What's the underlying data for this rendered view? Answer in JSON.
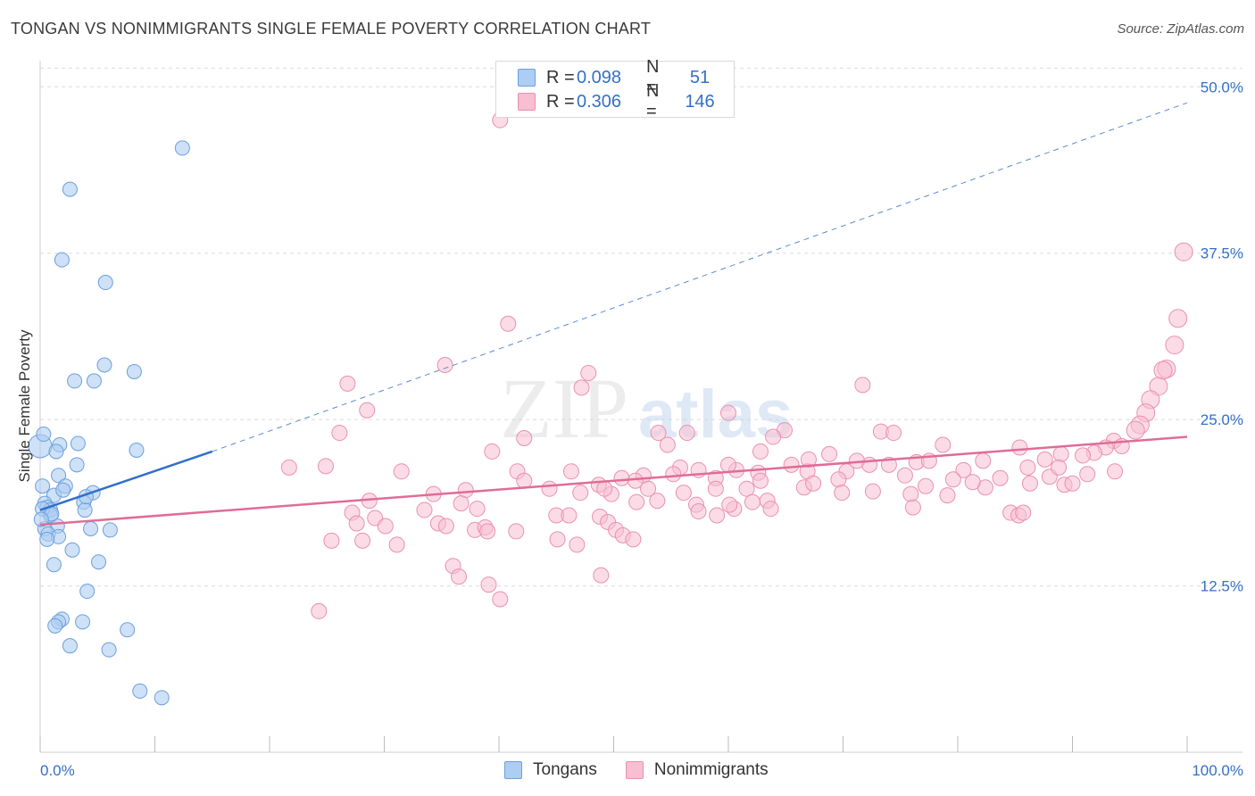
{
  "header": {
    "title": "TONGAN VS NONIMMIGRANTS SINGLE FEMALE POVERTY CORRELATION CHART",
    "source": "Source: ZipAtlas.com"
  },
  "watermark": {
    "main": "ZIP",
    "sub": "atlas"
  },
  "legend": {
    "rows": [
      {
        "r_label": "R =",
        "r_value": "0.098",
        "n_label": "N =",
        "n_value": "51"
      },
      {
        "r_label": "R =",
        "r_value": "0.306",
        "n_label": "N =",
        "n_value": "146"
      }
    ]
  },
  "bottom_legend": {
    "tongans": "Tongans",
    "nonimmigrants": "Nonimmigrants"
  },
  "colors": {
    "blue_fill": "#aecdf2",
    "blue_stroke": "#6b9fdc",
    "blue_line": "#2f6fce",
    "pink_fill": "#f7bfd1",
    "pink_stroke": "#ea90ae",
    "pink_line": "#e06c97",
    "accent_text": "#3370c8",
    "grid": "#dcdcdc"
  },
  "chart_data": {
    "type": "scatter",
    "title": "TONGAN VS NONIMMIGRANTS SINGLE FEMALE POVERTY CORRELATION CHART",
    "xlabel": "",
    "ylabel": "Single Female Poverty",
    "xlim": [
      0,
      100
    ],
    "ylim": [
      0,
      52.5
    ],
    "x_tick_labels": [
      "0.0%",
      "100.0%"
    ],
    "y_ticks": [
      12.5,
      25.0,
      37.5,
      50.0
    ],
    "y_tick_labels": [
      "12.5%",
      "25.0%",
      "37.5%",
      "50.0%"
    ],
    "legend_position": "top-center",
    "series": [
      {
        "name": "Tongans",
        "r": 0.098,
        "n": 51,
        "trend": {
          "x0": 0,
          "y0": 18.2,
          "x1": 15,
          "y1": 22.6,
          "dashed_to_x": 100,
          "dashed_to_y": 48.8
        },
        "points": [
          [
            12.4,
            45.4
          ],
          [
            2.6,
            42.3
          ],
          [
            1.9,
            37.0
          ],
          [
            5.7,
            35.3
          ],
          [
            8.2,
            28.6
          ],
          [
            5.6,
            29.1
          ],
          [
            3.0,
            27.9
          ],
          [
            4.7,
            27.9
          ],
          [
            0.0,
            23.0
          ],
          [
            0.3,
            23.9
          ],
          [
            3.3,
            23.2
          ],
          [
            1.7,
            23.1
          ],
          [
            1.4,
            22.6
          ],
          [
            8.4,
            22.7
          ],
          [
            3.2,
            21.6
          ],
          [
            1.6,
            20.8
          ],
          [
            0.2,
            20.0
          ],
          [
            2.2,
            20.0
          ],
          [
            4.6,
            19.5
          ],
          [
            1.2,
            19.3
          ],
          [
            0.4,
            18.7
          ],
          [
            0.6,
            18.4
          ],
          [
            0.9,
            18.2
          ],
          [
            3.8,
            18.8
          ],
          [
            3.9,
            18.2
          ],
          [
            0.9,
            17.8
          ],
          [
            1.5,
            17.0
          ],
          [
            0.4,
            16.8
          ],
          [
            4.4,
            16.8
          ],
          [
            6.1,
            16.7
          ],
          [
            0.7,
            16.4
          ],
          [
            1.6,
            16.2
          ],
          [
            0.6,
            16.0
          ],
          [
            2.8,
            15.2
          ],
          [
            5.1,
            14.3
          ],
          [
            1.2,
            14.1
          ],
          [
            4.1,
            12.1
          ],
          [
            1.9,
            10.0
          ],
          [
            1.6,
            9.8
          ],
          [
            3.7,
            9.8
          ],
          [
            1.3,
            9.5
          ],
          [
            7.6,
            9.2
          ],
          [
            2.6,
            8.0
          ],
          [
            6.0,
            7.7
          ],
          [
            8.7,
            4.6
          ],
          [
            10.6,
            4.1
          ],
          [
            0.2,
            18.3
          ],
          [
            1.0,
            17.9
          ],
          [
            2.0,
            19.7
          ],
          [
            4.0,
            19.2
          ],
          [
            0.1,
            17.5
          ]
        ]
      },
      {
        "name": "Nonimmigrants",
        "r": 0.306,
        "n": 146,
        "trend": {
          "x0": 0,
          "y0": 17.1,
          "x1": 100,
          "y1": 23.7
        },
        "points": [
          [
            40.1,
            47.5
          ],
          [
            99.7,
            37.6
          ],
          [
            40.8,
            32.2
          ],
          [
            99.2,
            32.6
          ],
          [
            98.9,
            30.6
          ],
          [
            98.2,
            28.8
          ],
          [
            97.9,
            28.7
          ],
          [
            97.5,
            27.5
          ],
          [
            35.3,
            29.1
          ],
          [
            26.8,
            27.7
          ],
          [
            47.2,
            27.4
          ],
          [
            47.8,
            28.5
          ],
          [
            71.7,
            27.6
          ],
          [
            96.8,
            26.5
          ],
          [
            96.4,
            25.5
          ],
          [
            95.9,
            24.6
          ],
          [
            95.5,
            24.2
          ],
          [
            28.5,
            25.7
          ],
          [
            60.0,
            25.5
          ],
          [
            64.9,
            24.2
          ],
          [
            63.9,
            23.7
          ],
          [
            53.9,
            24.0
          ],
          [
            54.7,
            23.1
          ],
          [
            56.4,
            24.0
          ],
          [
            73.3,
            24.1
          ],
          [
            74.4,
            24.0
          ],
          [
            26.1,
            24.0
          ],
          [
            42.2,
            23.6
          ],
          [
            39.4,
            22.6
          ],
          [
            62.8,
            22.6
          ],
          [
            68.8,
            22.4
          ],
          [
            78.7,
            23.1
          ],
          [
            85.4,
            22.9
          ],
          [
            93.6,
            23.4
          ],
          [
            94.3,
            23.0
          ],
          [
            92.9,
            22.9
          ],
          [
            91.9,
            22.5
          ],
          [
            90.9,
            22.3
          ],
          [
            89.0,
            22.4
          ],
          [
            87.6,
            22.0
          ],
          [
            82.2,
            21.9
          ],
          [
            80.5,
            21.2
          ],
          [
            76.4,
            21.8
          ],
          [
            74.0,
            21.6
          ],
          [
            72.3,
            21.6
          ],
          [
            70.3,
            21.1
          ],
          [
            66.9,
            21.1
          ],
          [
            65.5,
            21.6
          ],
          [
            62.6,
            21.0
          ],
          [
            60.7,
            21.2
          ],
          [
            58.9,
            20.6
          ],
          [
            55.8,
            21.4
          ],
          [
            52.6,
            20.8
          ],
          [
            50.7,
            20.6
          ],
          [
            46.3,
            21.1
          ],
          [
            41.6,
            21.1
          ],
          [
            31.5,
            21.1
          ],
          [
            24.9,
            21.5
          ],
          [
            21.7,
            21.4
          ],
          [
            34.3,
            19.4
          ],
          [
            37.1,
            19.7
          ],
          [
            42.2,
            20.4
          ],
          [
            44.4,
            19.8
          ],
          [
            47.1,
            19.5
          ],
          [
            48.7,
            20.1
          ],
          [
            53.0,
            19.8
          ],
          [
            56.1,
            19.5
          ],
          [
            58.9,
            19.8
          ],
          [
            61.6,
            19.8
          ],
          [
            62.8,
            20.4
          ],
          [
            63.4,
            18.9
          ],
          [
            66.6,
            19.9
          ],
          [
            67.4,
            20.2
          ],
          [
            69.6,
            20.5
          ],
          [
            75.4,
            20.8
          ],
          [
            79.6,
            20.5
          ],
          [
            82.4,
            19.9
          ],
          [
            83.7,
            20.6
          ],
          [
            86.3,
            20.2
          ],
          [
            88.0,
            20.7
          ],
          [
            89.3,
            20.1
          ],
          [
            90.0,
            20.2
          ],
          [
            91.3,
            20.9
          ],
          [
            93.7,
            21.1
          ],
          [
            28.7,
            18.9
          ],
          [
            33.5,
            18.2
          ],
          [
            36.7,
            18.7
          ],
          [
            38.1,
            18.3
          ],
          [
            45.0,
            17.8
          ],
          [
            46.1,
            17.8
          ],
          [
            49.8,
            19.4
          ],
          [
            52.0,
            18.8
          ],
          [
            53.8,
            18.9
          ],
          [
            57.2,
            18.6
          ],
          [
            59.0,
            17.8
          ],
          [
            60.5,
            18.3
          ],
          [
            62.1,
            18.8
          ],
          [
            63.7,
            18.3
          ],
          [
            69.9,
            19.5
          ],
          [
            72.6,
            19.6
          ],
          [
            75.9,
            19.4
          ],
          [
            77.2,
            20.0
          ],
          [
            79.1,
            19.3
          ],
          [
            81.3,
            20.3
          ],
          [
            84.6,
            18.0
          ],
          [
            85.3,
            17.8
          ],
          [
            85.7,
            18.0
          ],
          [
            76.1,
            18.4
          ],
          [
            27.2,
            18.0
          ],
          [
            27.6,
            17.2
          ],
          [
            29.2,
            17.6
          ],
          [
            34.7,
            17.2
          ],
          [
            37.9,
            16.7
          ],
          [
            38.8,
            16.9
          ],
          [
            41.5,
            16.6
          ],
          [
            48.8,
            17.7
          ],
          [
            49.5,
            17.3
          ],
          [
            50.2,
            16.7
          ],
          [
            50.8,
            16.3
          ],
          [
            51.7,
            16.0
          ],
          [
            57.4,
            18.1
          ],
          [
            60.1,
            18.6
          ],
          [
            25.4,
            15.9
          ],
          [
            28.1,
            15.9
          ],
          [
            30.1,
            17.0
          ],
          [
            31.1,
            15.6
          ],
          [
            35.4,
            17.0
          ],
          [
            36.0,
            14.0
          ],
          [
            39.0,
            16.6
          ],
          [
            45.1,
            16.0
          ],
          [
            46.8,
            15.6
          ],
          [
            36.5,
            13.2
          ],
          [
            39.1,
            12.6
          ],
          [
            48.9,
            13.3
          ],
          [
            40.1,
            11.5
          ],
          [
            24.3,
            10.6
          ],
          [
            86.1,
            21.4
          ],
          [
            88.8,
            21.4
          ],
          [
            77.5,
            21.9
          ],
          [
            71.2,
            21.9
          ],
          [
            67.0,
            22.0
          ],
          [
            60.0,
            21.6
          ],
          [
            57.4,
            21.2
          ],
          [
            55.2,
            20.9
          ],
          [
            51.9,
            20.4
          ],
          [
            49.2,
            19.8
          ]
        ]
      }
    ]
  }
}
